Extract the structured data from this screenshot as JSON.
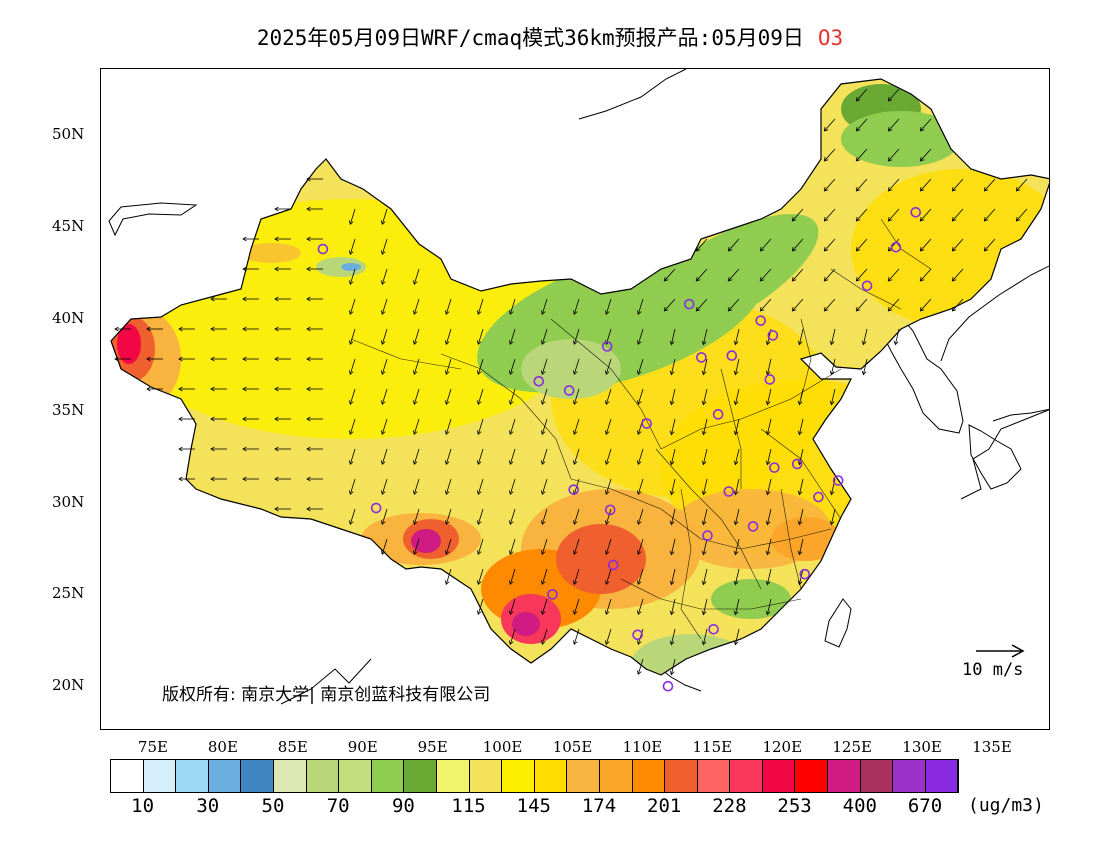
{
  "title": {
    "main": "2025年05月09日WRF/cmaq模式36km预报产品:05月09日",
    "species": "O3"
  },
  "map": {
    "lat_labels": [
      "50N",
      "45N",
      "40N",
      "35N",
      "30N",
      "25N",
      "20N"
    ],
    "lon_labels": [
      "75E",
      "80E",
      "85E",
      "90E",
      "95E",
      "100E",
      "105E",
      "110E",
      "115E",
      "120E",
      "125E",
      "130E",
      "135E"
    ],
    "copyright": "版权所有: 南京大学| 南京创蓝科技有限公司",
    "wind_reference": "10 m/s"
  },
  "colorbar": {
    "colors": [
      "#ffffff",
      "#d4eefb",
      "#9ed8f5",
      "#6aaedd",
      "#3f85c0",
      "#dde8b4",
      "#b9d678",
      "#c3df7d",
      "#8fcc4f",
      "#6aa834",
      "#f1f46a",
      "#f3e25a",
      "#fcf000",
      "#ffdd00",
      "#f8b43e",
      "#fba62a",
      "#fd8a00",
      "#f05f2e",
      "#fd6464",
      "#f8385a",
      "#f10844",
      "#fe0000",
      "#cf1b82",
      "#a7305c",
      "#9b31c8",
      "#8a2be2"
    ],
    "labels": [
      "10",
      "30",
      "50",
      "70",
      "90",
      "115",
      "145",
      "174",
      "201",
      "228",
      "253",
      "400",
      "670"
    ],
    "unit": "(ug/m3)"
  },
  "stations": [
    {
      "lon": 87.6,
      "lat": 43.8
    },
    {
      "lon": 91.1,
      "lat": 29.7
    },
    {
      "lon": 101.8,
      "lat": 36.6
    },
    {
      "lon": 103.8,
      "lat": 36.1
    },
    {
      "lon": 106.3,
      "lat": 38.5
    },
    {
      "lon": 111.7,
      "lat": 40.8
    },
    {
      "lon": 112.5,
      "lat": 37.9
    },
    {
      "lon": 114.5,
      "lat": 38.0
    },
    {
      "lon": 116.4,
      "lat": 39.9
    },
    {
      "lon": 117.2,
      "lat": 39.1
    },
    {
      "lon": 117.0,
      "lat": 36.7
    },
    {
      "lon": 113.6,
      "lat": 34.8
    },
    {
      "lon": 108.9,
      "lat": 34.3
    },
    {
      "lon": 104.1,
      "lat": 30.7
    },
    {
      "lon": 106.5,
      "lat": 29.6
    },
    {
      "lon": 106.7,
      "lat": 26.6
    },
    {
      "lon": 102.7,
      "lat": 25.0
    },
    {
      "lon": 108.3,
      "lat": 22.8
    },
    {
      "lon": 113.3,
      "lat": 23.1
    },
    {
      "lon": 110.3,
      "lat": 20.0
    },
    {
      "lon": 112.9,
      "lat": 28.2
    },
    {
      "lon": 115.9,
      "lat": 28.7
    },
    {
      "lon": 114.3,
      "lat": 30.6
    },
    {
      "lon": 117.3,
      "lat": 31.9
    },
    {
      "lon": 118.8,
      "lat": 32.1
    },
    {
      "lon": 120.2,
      "lat": 30.3
    },
    {
      "lon": 121.5,
      "lat": 31.2
    },
    {
      "lon": 119.3,
      "lat": 26.1
    },
    {
      "lon": 123.4,
      "lat": 41.8
    },
    {
      "lon": 125.3,
      "lat": 43.9
    },
    {
      "lon": 126.6,
      "lat": 45.8
    }
  ]
}
